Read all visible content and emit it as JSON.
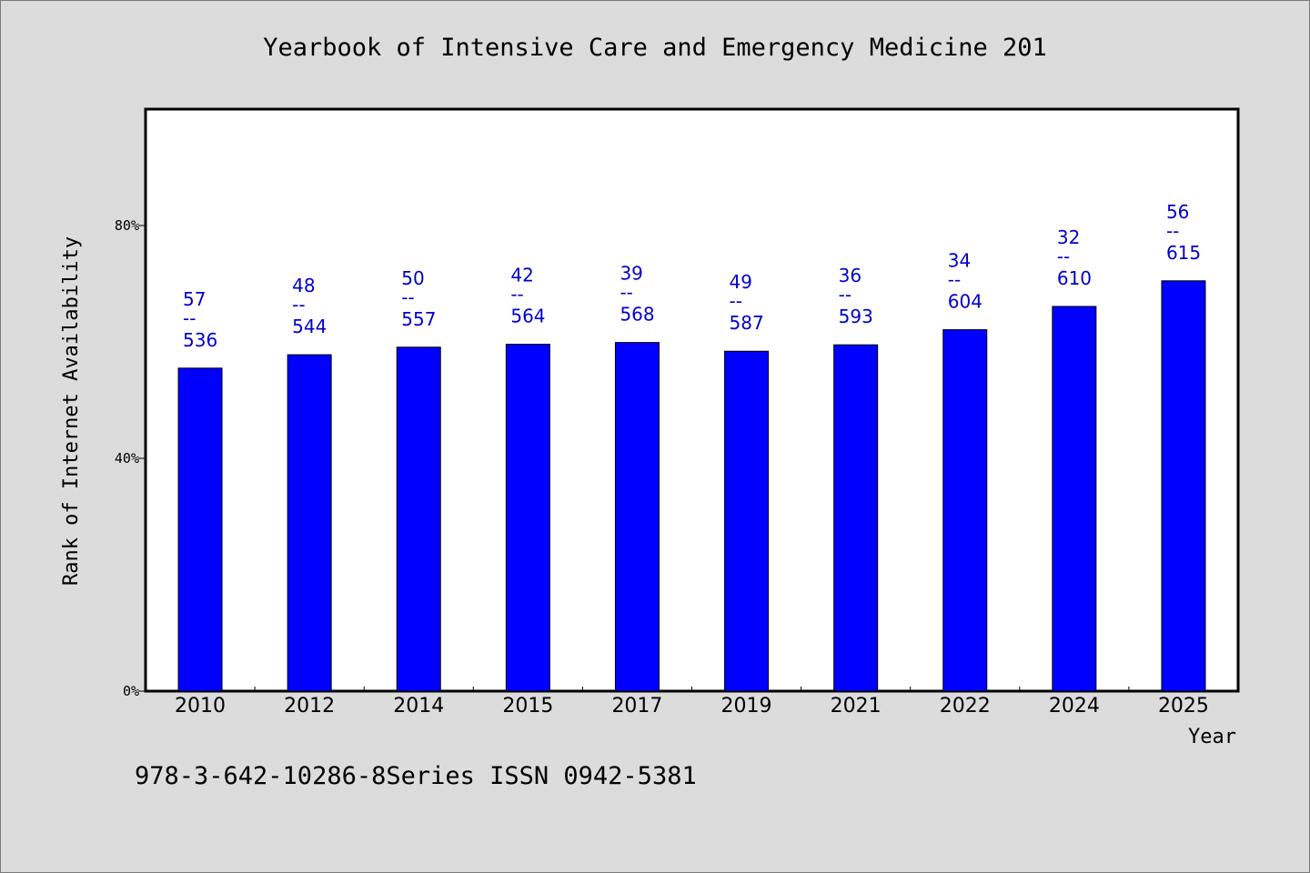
{
  "chart_data": {
    "type": "bar",
    "title": "Yearbook of Intensive Care and Emergency Medicine 201",
    "xlabel": "Year",
    "ylabel": "Rank of Internet Availability",
    "ylim": [
      0,
      100
    ],
    "yticks": [
      {
        "value": 0,
        "label": "0%"
      },
      {
        "value": 40,
        "label": "40%"
      },
      {
        "value": 80,
        "label": "80%"
      }
    ],
    "categories": [
      "2010",
      "2012",
      "2014",
      "2015",
      "2017",
      "2019",
      "2021",
      "2022",
      "2024",
      "2025"
    ],
    "values": [
      55.5,
      57.8,
      59.1,
      59.6,
      59.9,
      58.4,
      59.5,
      62.1,
      66.1,
      70.5
    ],
    "data_labels": [
      {
        "top": "57",
        "sep": "--",
        "bottom": "536"
      },
      {
        "top": "48",
        "sep": "--",
        "bottom": "544"
      },
      {
        "top": "50",
        "sep": "--",
        "bottom": "557"
      },
      {
        "top": "42",
        "sep": "--",
        "bottom": "564"
      },
      {
        "top": "39",
        "sep": "--",
        "bottom": "568"
      },
      {
        "top": "49",
        "sep": "--",
        "bottom": "587"
      },
      {
        "top": "36",
        "sep": "--",
        "bottom": "593"
      },
      {
        "top": "34",
        "sep": "--",
        "bottom": "604"
      },
      {
        "top": "32",
        "sep": "--",
        "bottom": "610"
      },
      {
        "top": "56",
        "sep": "--",
        "bottom": "615"
      }
    ],
    "bar_color": "#0000ff",
    "label_color": "#0000cc",
    "grid": false,
    "legend": "none"
  },
  "footnote": "978-3-642-10286-8Series ISSN 0942-5381"
}
